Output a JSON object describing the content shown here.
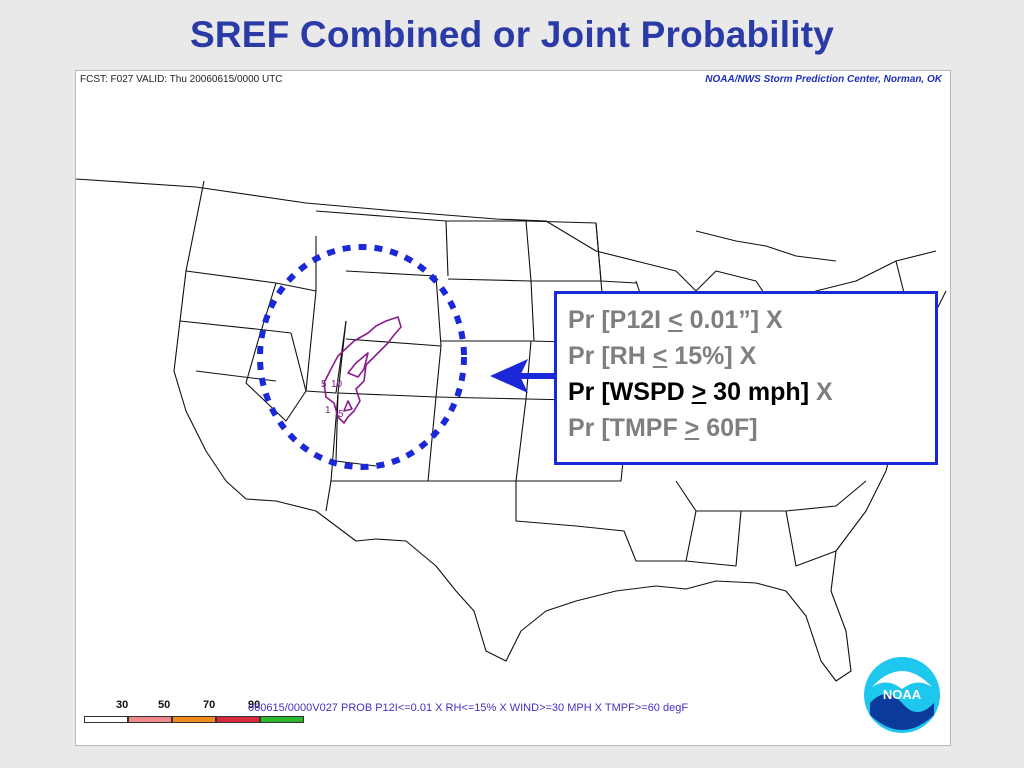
{
  "page": {
    "title": "SREF Combined or Joint Probability"
  },
  "map": {
    "forecast_label": "FCST: F027  VALID: Thu  20060615/0000 UTC",
    "source_label": "NOAA/NWS Storm Prediction Center, Norman, OK",
    "contour_labels": [
      "5",
      "10",
      "1",
      "5"
    ],
    "footer_label": "060615/0000V027 PROB P12I<=0.01 X RH<=15% X WIND>=30 MPH X TMPF>=60 degF",
    "logo_text": "NOAA",
    "colors": {
      "contour": "#8a1c8e",
      "highlight_ellipse": "#1a28d8",
      "arrow": "#1a28d8",
      "state_lines": "#111111"
    }
  },
  "legend": {
    "values": [
      "30",
      "50",
      "70",
      "90"
    ],
    "colors": [
      "#ffffff",
      "#f08a8a",
      "#f08a1e",
      "#d8283c",
      "#2cb82c"
    ]
  },
  "callout": {
    "lines": [
      {
        "prefix": "Pr [P12I ",
        "op": "<",
        "suffix": " 0.01”]",
        "x": " X",
        "active": false
      },
      {
        "prefix": "Pr [RH ",
        "op": "<",
        "suffix": " 15%]",
        "x": " X",
        "active": false
      },
      {
        "prefix": "Pr [WSPD ",
        "op": ">",
        "suffix": " 30 mph]",
        "x": " X",
        "active": true
      },
      {
        "prefix": "Pr [TMPF ",
        "op": ">",
        "suffix": " 60F]",
        "x": "",
        "active": false
      }
    ]
  }
}
